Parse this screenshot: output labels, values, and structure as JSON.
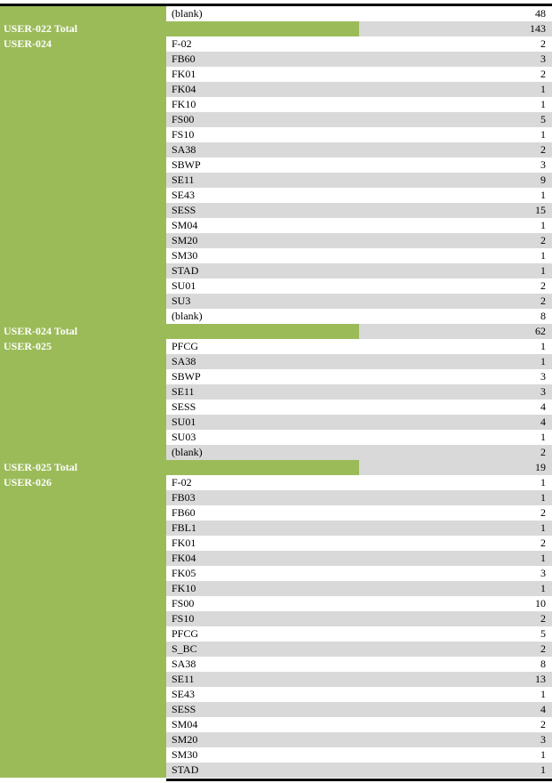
{
  "rows": [
    {
      "kind": "item",
      "user": "",
      "code": "(blank)",
      "count": "48"
    },
    {
      "kind": "total",
      "user": "USER-022 Total",
      "code": "",
      "count": "143"
    },
    {
      "kind": "item",
      "user": "USER-024",
      "code": "F-02",
      "count": "2"
    },
    {
      "kind": "item",
      "user": "",
      "code": "FB60",
      "count": "3"
    },
    {
      "kind": "item",
      "user": "",
      "code": "FK01",
      "count": "2"
    },
    {
      "kind": "item",
      "user": "",
      "code": "FK04",
      "count": "1"
    },
    {
      "kind": "item",
      "user": "",
      "code": "FK10",
      "count": "1"
    },
    {
      "kind": "item",
      "user": "",
      "code": "FS00",
      "count": "5"
    },
    {
      "kind": "item",
      "user": "",
      "code": "FS10",
      "count": "1"
    },
    {
      "kind": "item",
      "user": "",
      "code": "SA38",
      "count": "2"
    },
    {
      "kind": "item",
      "user": "",
      "code": "SBWP",
      "count": "3"
    },
    {
      "kind": "item",
      "user": "",
      "code": "SE11",
      "count": "9"
    },
    {
      "kind": "item",
      "user": "",
      "code": "SE43",
      "count": "1"
    },
    {
      "kind": "item",
      "user": "",
      "code": "SESS",
      "count": "15"
    },
    {
      "kind": "item",
      "user": "",
      "code": "SM04",
      "count": "1"
    },
    {
      "kind": "item",
      "user": "",
      "code": "SM20",
      "count": "2"
    },
    {
      "kind": "item",
      "user": "",
      "code": "SM30",
      "count": "1"
    },
    {
      "kind": "item",
      "user": "",
      "code": "STAD",
      "count": "1"
    },
    {
      "kind": "item",
      "user": "",
      "code": "SU01",
      "count": "2"
    },
    {
      "kind": "item",
      "user": "",
      "code": "SU3",
      "count": "2"
    },
    {
      "kind": "item",
      "user": "",
      "code": "(blank)",
      "count": "8"
    },
    {
      "kind": "total",
      "user": "USER-024 Total",
      "code": "",
      "count": "62"
    },
    {
      "kind": "item",
      "user": "USER-025",
      "code": "PFCG",
      "count": "1"
    },
    {
      "kind": "item",
      "user": "",
      "code": "SA38",
      "count": "1"
    },
    {
      "kind": "item",
      "user": "",
      "code": "SBWP",
      "count": "3"
    },
    {
      "kind": "item",
      "user": "",
      "code": "SE11",
      "count": "3"
    },
    {
      "kind": "item",
      "user": "",
      "code": "SESS",
      "count": "4"
    },
    {
      "kind": "item",
      "user": "",
      "code": "SU01",
      "count": "4"
    },
    {
      "kind": "item",
      "user": "",
      "code": "SU03",
      "count": "1"
    },
    {
      "kind": "item",
      "user": "",
      "code": "(blank)",
      "count": "2"
    },
    {
      "kind": "total",
      "user": "USER-025 Total",
      "code": "",
      "count": "19"
    },
    {
      "kind": "item",
      "user": "USER-026",
      "code": "F-02",
      "count": "1"
    },
    {
      "kind": "item",
      "user": "",
      "code": "FB03",
      "count": "1"
    },
    {
      "kind": "item",
      "user": "",
      "code": "FB60",
      "count": "2"
    },
    {
      "kind": "item",
      "user": "",
      "code": "FBL1",
      "count": "1"
    },
    {
      "kind": "item",
      "user": "",
      "code": "FK01",
      "count": "2"
    },
    {
      "kind": "item",
      "user": "",
      "code": "FK04",
      "count": "1"
    },
    {
      "kind": "item",
      "user": "",
      "code": "FK05",
      "count": "3"
    },
    {
      "kind": "item",
      "user": "",
      "code": "FK10",
      "count": "1"
    },
    {
      "kind": "item",
      "user": "",
      "code": "FS00",
      "count": "10"
    },
    {
      "kind": "item",
      "user": "",
      "code": "FS10",
      "count": "2"
    },
    {
      "kind": "item",
      "user": "",
      "code": "PFCG",
      "count": "5"
    },
    {
      "kind": "item",
      "user": "",
      "code": "S_BC",
      "count": "2"
    },
    {
      "kind": "item",
      "user": "",
      "code": "SA38",
      "count": "8"
    },
    {
      "kind": "item",
      "user": "",
      "code": "SE11",
      "count": "13"
    },
    {
      "kind": "item",
      "user": "",
      "code": "SE43",
      "count": "1"
    },
    {
      "kind": "item",
      "user": "",
      "code": "SESS",
      "count": "4"
    },
    {
      "kind": "item",
      "user": "",
      "code": "SM04",
      "count": "2"
    },
    {
      "kind": "item",
      "user": "",
      "code": "SM20",
      "count": "3"
    },
    {
      "kind": "item",
      "user": "",
      "code": "SM30",
      "count": "1"
    },
    {
      "kind": "item",
      "user": "",
      "code": "STAD",
      "count": "1"
    }
  ],
  "colors": {
    "header_green": "#9bbb59",
    "band_gray": "#d9d9d9",
    "rule": "#000000"
  }
}
